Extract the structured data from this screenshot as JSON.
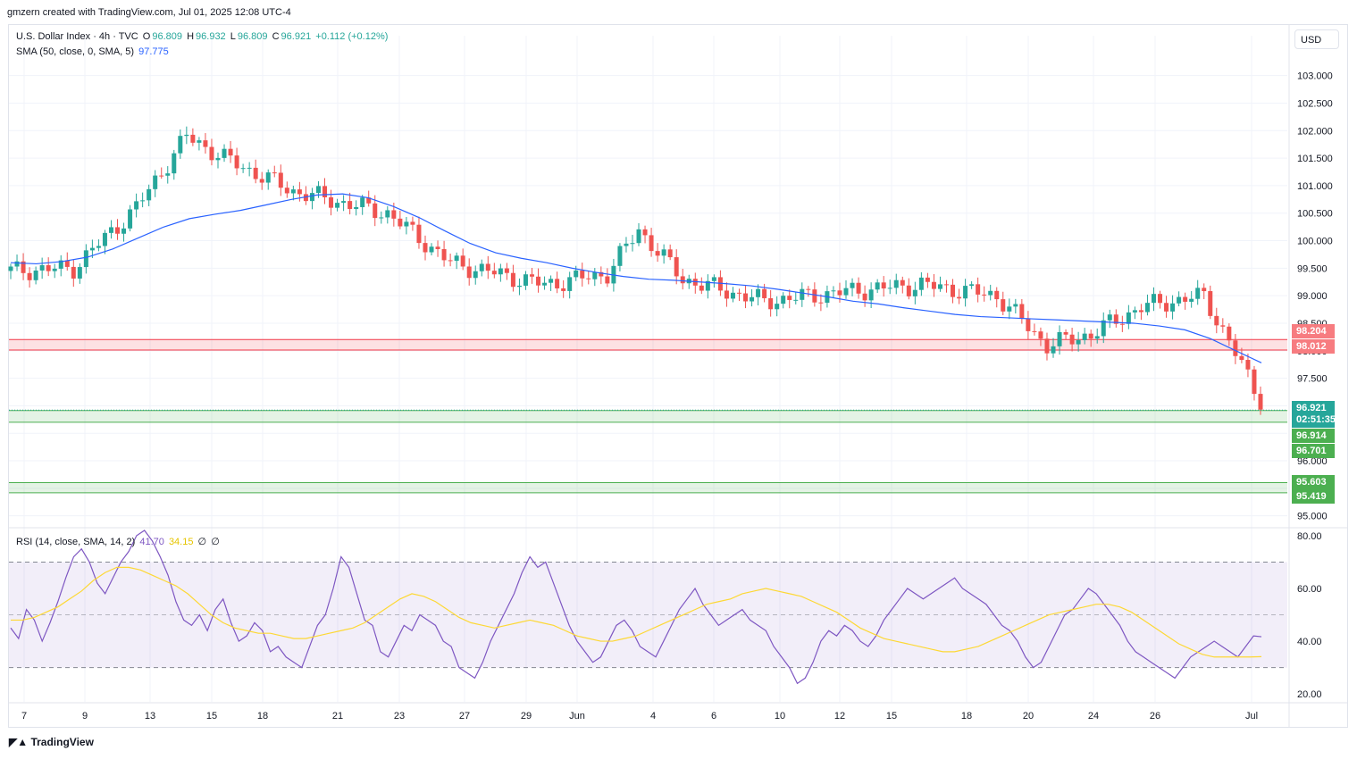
{
  "header": {
    "credit": "gmzern created with TradingView.com, Jul 01, 2025 12:08 UTC-4"
  },
  "legend": {
    "symbol": "U.S. Dollar Index · 4h · TVC",
    "o_label": "O",
    "o_value": "96.809",
    "h_label": "H",
    "h_value": "96.932",
    "l_label": "L",
    "l_value": "96.809",
    "c_label": "C",
    "c_value": "96.921",
    "change": "+0.112 (+0.12%)",
    "sma_label": "SMA (50, close, 0, SMA, 5)",
    "sma_value": "97.775",
    "rsi_label": "RSI (14, close, SMA, 14, 2)",
    "rsi_value": "41.70",
    "rsi_sma_value": "34.15",
    "rsi_na1": "∅",
    "rsi_na2": "∅"
  },
  "currency": "USD",
  "price_tags": {
    "last_price": "96.921",
    "countdown": "02:51:35",
    "zone_red_top": "98.204",
    "zone_red_bottom": "98.012",
    "zone_green1_top": "96.914",
    "zone_green1_bottom": "96.701",
    "zone_green2_top": "95.603",
    "zone_green2_bottom": "95.419"
  },
  "footer": {
    "brand": "TradingView"
  },
  "colors": {
    "up": "#26a69a",
    "down": "#ef5350",
    "sma": "#2962ff",
    "rsi": "#7e57c2",
    "rsi_sma": "#fdd835",
    "zone_red": "#f23645",
    "zone_green": "#4caf50"
  },
  "chart_data": [
    {
      "type": "candlestick",
      "title": "U.S. Dollar Index · 4h · TVC",
      "y_ticks": [
        "103.000",
        "102.500",
        "102.000",
        "101.500",
        "101.000",
        "100.500",
        "100.000",
        "99.500",
        "99.000",
        "98.500",
        "98.000",
        "97.500",
        "97.000",
        "96.500",
        "96.000",
        "95.500",
        "95.000"
      ],
      "x_ticks": [
        "7",
        "9",
        "13",
        "15",
        "18",
        "21",
        "23",
        "27",
        "29",
        "Jun",
        "4",
        "6",
        "10",
        "12",
        "15",
        "18",
        "20",
        "24",
        "26",
        "Jul"
      ],
      "ylim": [
        94.8,
        103.4
      ],
      "series": [
        {
          "name": "SMA (50, close, 0, SMA, 5)",
          "values_sampled": [
            99.6,
            99.58,
            99.62,
            99.7,
            99.85,
            100.05,
            100.25,
            100.4,
            100.48,
            100.55,
            100.65,
            100.75,
            100.83,
            100.85,
            100.78,
            100.62,
            100.42,
            100.18,
            99.95,
            99.78,
            99.68,
            99.6,
            99.5,
            99.42,
            99.35,
            99.3,
            99.28,
            99.25,
            99.22,
            99.18,
            99.12,
            99.05,
            98.98,
            98.9,
            98.85,
            98.78,
            98.72,
            98.66,
            98.62,
            98.6,
            98.58,
            98.56,
            98.54,
            98.52,
            98.5,
            98.45,
            98.38,
            98.22,
            98.0,
            97.78
          ]
        },
        {
          "name": "zones",
          "ranges": [
            [
              98.012,
              98.204
            ],
            [
              96.701,
              96.914
            ],
            [
              95.419,
              95.603
            ]
          ]
        }
      ],
      "last": 96.921
    },
    {
      "type": "line",
      "title": "RSI (14, close, SMA, 14, 2)",
      "y_ticks": [
        "80.00",
        "60.00",
        "40.00",
        "20.00"
      ],
      "ylim": [
        17,
        82
      ],
      "bands": [
        30,
        50,
        70
      ],
      "series": [
        {
          "name": "RSI",
          "values": [
            45,
            41,
            52,
            48,
            40,
            47,
            55,
            64,
            72,
            75,
            70,
            62,
            58,
            64,
            70,
            74,
            80,
            82,
            78,
            72,
            65,
            55,
            48,
            46,
            50,
            44,
            52,
            56,
            47,
            40,
            42,
            47,
            44,
            36,
            38,
            34,
            32,
            30,
            38,
            46,
            50,
            60,
            72,
            68,
            58,
            48,
            46,
            36,
            34,
            40,
            46,
            44,
            50,
            48,
            46,
            40,
            38,
            30,
            28,
            26,
            32,
            40,
            46,
            52,
            58,
            66,
            72,
            68,
            70,
            62,
            54,
            46,
            40,
            36,
            32,
            34,
            40,
            46,
            48,
            44,
            38,
            36,
            34,
            40,
            46,
            52,
            56,
            60,
            54,
            50,
            46,
            48,
            50,
            52,
            48,
            46,
            44,
            38,
            34,
            30,
            24,
            26,
            32,
            40,
            44,
            42,
            46,
            44,
            40,
            38,
            42,
            48,
            52,
            56,
            60,
            58,
            56,
            58,
            60,
            62,
            64,
            60,
            58,
            56,
            54,
            50,
            46,
            44,
            40,
            34,
            30,
            32,
            38,
            44,
            50,
            52,
            56,
            60,
            58,
            54,
            50,
            46,
            40,
            36,
            34,
            32,
            30,
            28,
            26,
            30,
            34,
            36,
            38,
            40,
            38,
            36,
            34,
            38,
            42,
            41.7
          ]
        },
        {
          "name": "SMA",
          "values": [
            48,
            48,
            49,
            51,
            53,
            56,
            59,
            63,
            66,
            68,
            68,
            67,
            65,
            63,
            61,
            58,
            54,
            50,
            47,
            45,
            44,
            43,
            43,
            42,
            41,
            41,
            42,
            43,
            44,
            45,
            47,
            50,
            53,
            56,
            58,
            57,
            55,
            52,
            49,
            47,
            46,
            45,
            46,
            47,
            48,
            47,
            46,
            44,
            42,
            41,
            40,
            40,
            41,
            42,
            44,
            46,
            48,
            50,
            52,
            54,
            55,
            56,
            58,
            59,
            60,
            59,
            58,
            57,
            55,
            53,
            51,
            48,
            45,
            43,
            41,
            40,
            39,
            38,
            37,
            36,
            36,
            37,
            38,
            40,
            42,
            44,
            46,
            48,
            50,
            51,
            52,
            53,
            54,
            54,
            53,
            51,
            48,
            45,
            42,
            39,
            37,
            35,
            34,
            34,
            34,
            34,
            34.15
          ]
        }
      ]
    }
  ]
}
